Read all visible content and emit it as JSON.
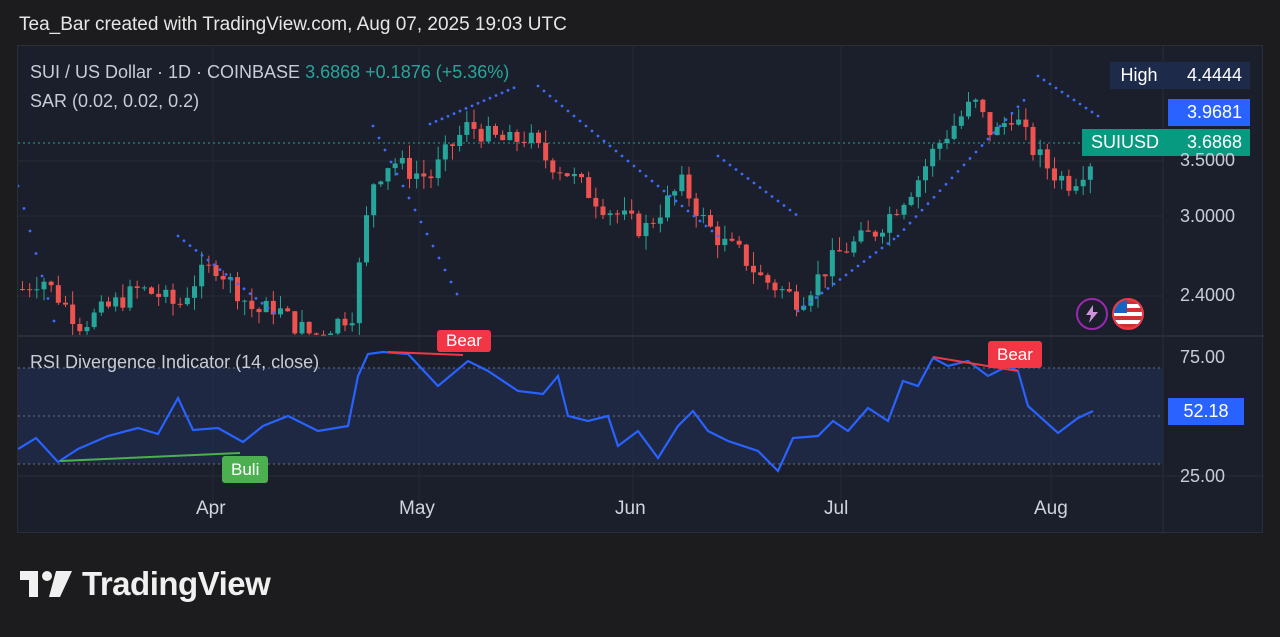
{
  "header": {
    "text": "Tea_Bar created with TradingView.com, Aug 07, 2025 19:03 UTC"
  },
  "legend": {
    "symbol": "SUI / US Dollar · 1D · COINBASE",
    "price": "3.6868",
    "change": "+0.1876 (+5.36%)",
    "sar": "SAR (0.02, 0.02, 0.2)"
  },
  "rsi": {
    "label": "RSI Divergence Indicator (14, close)",
    "value": "52.18"
  },
  "price_axis": {
    "ticks": [
      "3.5000",
      "3.0000",
      "2.4000"
    ],
    "high_label": "High",
    "high_value": "4.4444",
    "level_value": "3.9681",
    "symbol_tag": "SUIUSD",
    "last_value": "3.6868"
  },
  "rsi_axis": {
    "ticks": [
      "75.00",
      "25.00"
    ]
  },
  "months": [
    "Apr",
    "May",
    "Jun",
    "Jul",
    "Aug"
  ],
  "badges": {
    "bull": "Buli",
    "bear": "Bear"
  },
  "brand": {
    "name": "TradingView"
  },
  "colors": {
    "up": "#26a69a",
    "down": "#ef5350",
    "rsi": "#2962ff",
    "sar": "#3d6bff"
  },
  "chart_data": {
    "type": "candlestick",
    "title": "SUI / US Dollar · 1D · COINBASE",
    "x_axis_ticks": [
      "Apr",
      "May",
      "Jun",
      "Jul",
      "Aug"
    ],
    "y_axis_ticks": [
      2.4,
      3.0,
      3.5
    ],
    "last_close": 3.6868,
    "high": 4.4444,
    "close_series_approx": [
      2.6,
      2.7,
      2.5,
      2.3,
      2.4,
      2.5,
      2.6,
      2.55,
      2.45,
      2.7,
      2.8,
      2.6,
      2.4,
      2.45,
      2.3,
      2.2,
      2.3,
      2.4,
      3.5,
      3.7,
      3.6,
      3.55,
      3.8,
      4.0,
      3.9,
      3.85,
      3.9,
      3.7,
      3.6,
      3.45,
      3.3,
      3.2,
      3.1,
      3.3,
      3.5,
      3.2,
      3.0,
      2.9,
      2.7,
      2.6,
      2.5,
      2.7,
      2.9,
      3.0,
      3.1,
      3.3,
      3.5,
      3.8,
      4.0,
      4.2,
      3.9,
      4.1,
      3.8,
      3.6,
      3.5,
      3.69
    ],
    "indicators": [
      {
        "name": "SAR",
        "params": "(0.02, 0.02, 0.2)"
      },
      {
        "name": "RSI Divergence Indicator",
        "params": "(14, close)",
        "last": 52.18,
        "levels": [
          75,
          25
        ]
      }
    ]
  }
}
